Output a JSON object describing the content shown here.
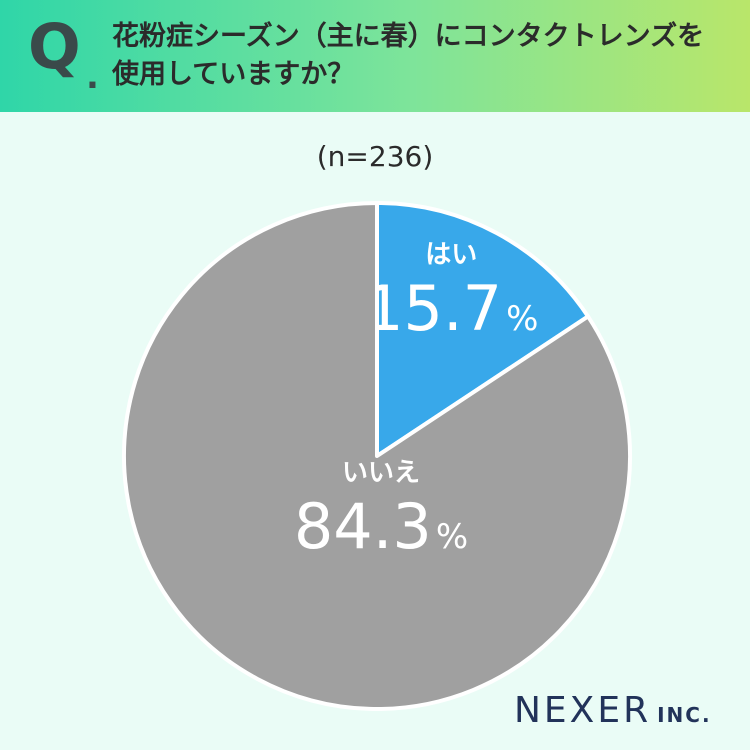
{
  "header": {
    "q_label": "Q",
    "q_dot": ".",
    "question_line1": "花粉症シーズン（主に春）にコンタクトレンズを",
    "question_line2": "使用していますか？"
  },
  "sample_size": "(n=236)",
  "chart_data": {
    "type": "pie",
    "title": "花粉症シーズン（主に春）にコンタクトレンズを使用していますか？",
    "n": 236,
    "slices": [
      {
        "label": "はい",
        "value": 15.7,
        "display": "15.7",
        "color": "#38a8ea"
      },
      {
        "label": "いいえ",
        "value": 84.3,
        "display": "84.3",
        "color": "#a0a0a0"
      }
    ],
    "unit": "%",
    "start_angle": "12 o'clock",
    "direction": "clockwise"
  },
  "logo": {
    "main": "NEXER",
    "sub": "INC."
  }
}
